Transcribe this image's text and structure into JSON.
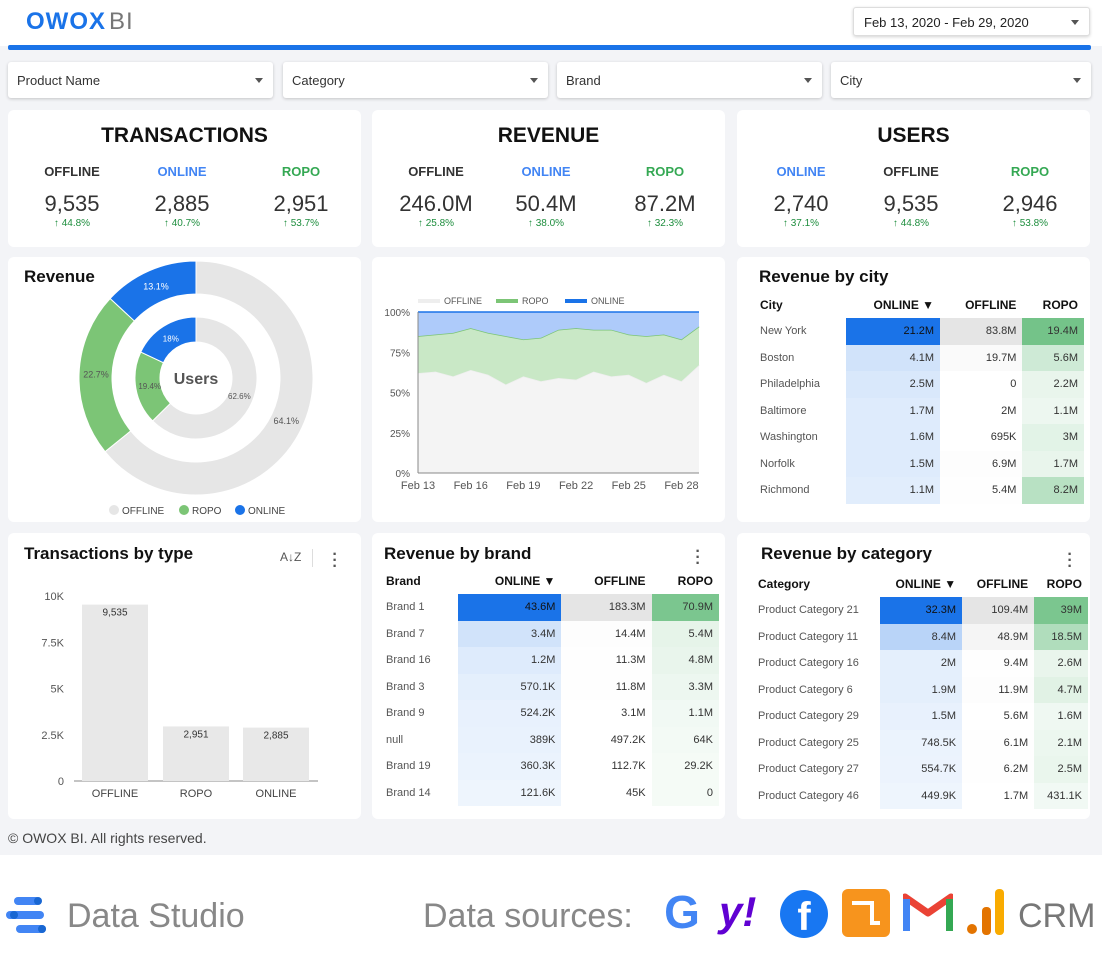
{
  "header": {
    "logo_main": "OWOX",
    "logo_sub": "BI",
    "date_range": "Feb 13, 2020 - Feb 29, 2020"
  },
  "filters": [
    {
      "label": "Product Name"
    },
    {
      "label": "Category"
    },
    {
      "label": "Brand"
    },
    {
      "label": "City"
    }
  ],
  "kpis": [
    {
      "title": "TRANSACTIONS",
      "cols": [
        {
          "label": "OFFLINE",
          "value": "9,535",
          "change": "44.8%",
          "color": "#333333"
        },
        {
          "label": "ONLINE",
          "value": "2,885",
          "change": "40.7%",
          "color": "#4285f4"
        },
        {
          "label": "ROPO",
          "value": "2,951",
          "change": "53.7%",
          "color": "#34a853"
        }
      ]
    },
    {
      "title": "REVENUE",
      "cols": [
        {
          "label": "OFFLINE",
          "value": "246.0M",
          "change": "25.8%",
          "color": "#333333"
        },
        {
          "label": "ONLINE",
          "value": "50.4M",
          "change": "38.0%",
          "color": "#4285f4"
        },
        {
          "label": "ROPO",
          "value": "87.2M",
          "change": "32.3%",
          "color": "#34a853"
        }
      ]
    },
    {
      "title": "USERS",
      "cols": [
        {
          "label": "ONLINE",
          "value": "2,740",
          "change": "37.1%",
          "color": "#4285f4"
        },
        {
          "label": "OFFLINE",
          "value": "9,535",
          "change": "44.8%",
          "color": "#333333"
        },
        {
          "label": "ROPO",
          "value": "2,946",
          "change": "53.8%",
          "color": "#34a853"
        }
      ]
    }
  ],
  "donut": {
    "title": "Revenue",
    "center_label": "Users",
    "outer_labels": [
      "64.1%",
      "22.7%",
      "13.1%"
    ],
    "inner_labels": [
      "62.6%",
      "19.4%",
      "18%"
    ],
    "legend": [
      "OFFLINE",
      "ROPO",
      "ONLINE"
    ]
  },
  "area_legend": [
    "OFFLINE",
    "ROPO",
    "ONLINE"
  ],
  "city_table": {
    "title": "Revenue by city",
    "headers": [
      "City",
      "ONLINE ▼",
      "OFFLINE",
      "ROPO"
    ],
    "rows": [
      [
        "New York",
        "21.2M",
        "83.8M",
        "19.4M"
      ],
      [
        "Boston",
        "4.1M",
        "19.7M",
        "5.6M"
      ],
      [
        "Philadelphia",
        "2.5M",
        "0",
        "2.2M"
      ],
      [
        "Baltimore",
        "1.7M",
        "2M",
        "1.1M"
      ],
      [
        "Washington",
        "1.6M",
        "695K",
        "3M"
      ],
      [
        "Norfolk",
        "1.5M",
        "6.9M",
        "1.7M"
      ],
      [
        "Richmond",
        "1.1M",
        "5.4M",
        "8.2M"
      ]
    ]
  },
  "brand_table": {
    "title": "Revenue by brand",
    "headers": [
      "Brand",
      "ONLINE ▼",
      "OFFLINE",
      "ROPO"
    ],
    "rows": [
      [
        "Brand 1",
        "43.6M",
        "183.3M",
        "70.9M"
      ],
      [
        "Brand 7",
        "3.4M",
        "14.4M",
        "5.4M"
      ],
      [
        "Brand 16",
        "1.2M",
        "11.3M",
        "4.8M"
      ],
      [
        "Brand 3",
        "570.1K",
        "11.8M",
        "3.3M"
      ],
      [
        "Brand 9",
        "524.2K",
        "3.1M",
        "1.1M"
      ],
      [
        "null",
        "389K",
        "497.2K",
        "64K"
      ],
      [
        "Brand 19",
        "360.3K",
        "112.7K",
        "29.2K"
      ],
      [
        "Brand 14",
        "121.6K",
        "45K",
        "0"
      ]
    ]
  },
  "category_table": {
    "title": "Revenue by category",
    "headers": [
      "Category",
      "ONLINE ▼",
      "OFFLINE",
      "ROPO"
    ],
    "rows": [
      [
        "Product Category 21",
        "32.3M",
        "109.4M",
        "39M"
      ],
      [
        "Product Category 11",
        "8.4M",
        "48.9M",
        "18.5M"
      ],
      [
        "Product Category 16",
        "2M",
        "9.4M",
        "2.6M"
      ],
      [
        "Product Category 6",
        "1.9M",
        "11.9M",
        "4.7M"
      ],
      [
        "Product Category 29",
        "1.5M",
        "5.6M",
        "1.6M"
      ],
      [
        "Product Category 25",
        "748.5K",
        "6.1M",
        "2.1M"
      ],
      [
        "Product Category 27",
        "554.7K",
        "6.2M",
        "2.5M"
      ],
      [
        "Product Category 46",
        "449.9K",
        "1.7M",
        "431.1K"
      ]
    ]
  },
  "bar_title": "Transactions by type",
  "footer": "© OWOX BI. All rights reserved.",
  "bottom": {
    "studio": "Data Studio",
    "sources_label": "Data sources:",
    "crm": "CRM"
  },
  "chart_data": [
    {
      "type": "pie",
      "title": "Revenue",
      "series": [
        {
          "name": "Revenue",
          "labels": [
            "OFFLINE",
            "ROPO",
            "ONLINE"
          ],
          "values": [
            64.1,
            22.7,
            13.1
          ]
        },
        {
          "name": "Users",
          "labels": [
            "OFFLINE",
            "ROPO",
            "ONLINE"
          ],
          "values": [
            62.6,
            19.4,
            18
          ]
        }
      ],
      "colors": [
        "#e6e6e6",
        "#7cc576",
        "#1a73e8"
      ],
      "legend": "bottom"
    },
    {
      "type": "area",
      "stacked_percent": true,
      "categories": [
        "Feb 13",
        "Feb 14",
        "Feb 15",
        "Feb 16",
        "Feb 17",
        "Feb 18",
        "Feb 19",
        "Feb 20",
        "Feb 21",
        "Feb 22",
        "Feb 23",
        "Feb 24",
        "Feb 25",
        "Feb 26",
        "Feb 27",
        "Feb 28",
        "Feb 29"
      ],
      "x_ticks": [
        "Feb 13",
        "Feb 16",
        "Feb 19",
        "Feb 22",
        "Feb 25",
        "Feb 28"
      ],
      "y_ticks": [
        "0%",
        "25%",
        "50%",
        "75%",
        "100%"
      ],
      "ylim": [
        0,
        100
      ],
      "series": [
        {
          "name": "OFFLINE",
          "values": [
            62,
            63,
            60,
            64,
            61,
            55,
            60,
            57,
            59,
            58,
            63,
            60,
            61,
            56,
            61,
            57,
            67
          ],
          "color": "#f4f4f4"
        },
        {
          "name": "ROPO",
          "values": [
            23,
            23,
            27,
            26,
            26,
            30,
            23,
            27,
            30,
            32,
            26,
            29,
            25,
            29,
            25,
            26,
            24
          ],
          "color": "#c9e8c6"
        },
        {
          "name": "ONLINE",
          "values": [
            15,
            14,
            13,
            10,
            13,
            15,
            17,
            16,
            11,
            10,
            11,
            11,
            14,
            15,
            14,
            17,
            9
          ],
          "color": "#aecbfa"
        }
      ],
      "legend": "top"
    },
    {
      "type": "bar",
      "title": "Transactions by type",
      "categories": [
        "OFFLINE",
        "ROPO",
        "ONLINE"
      ],
      "values": [
        9535,
        2951,
        2885
      ],
      "data_labels": [
        "9,535",
        "2,951",
        "2,885"
      ],
      "y_ticks": [
        "0",
        "2.5K",
        "5K",
        "7.5K",
        "10K"
      ],
      "ylim": [
        0,
        10000
      ],
      "color": "#e8e8e8"
    }
  ]
}
